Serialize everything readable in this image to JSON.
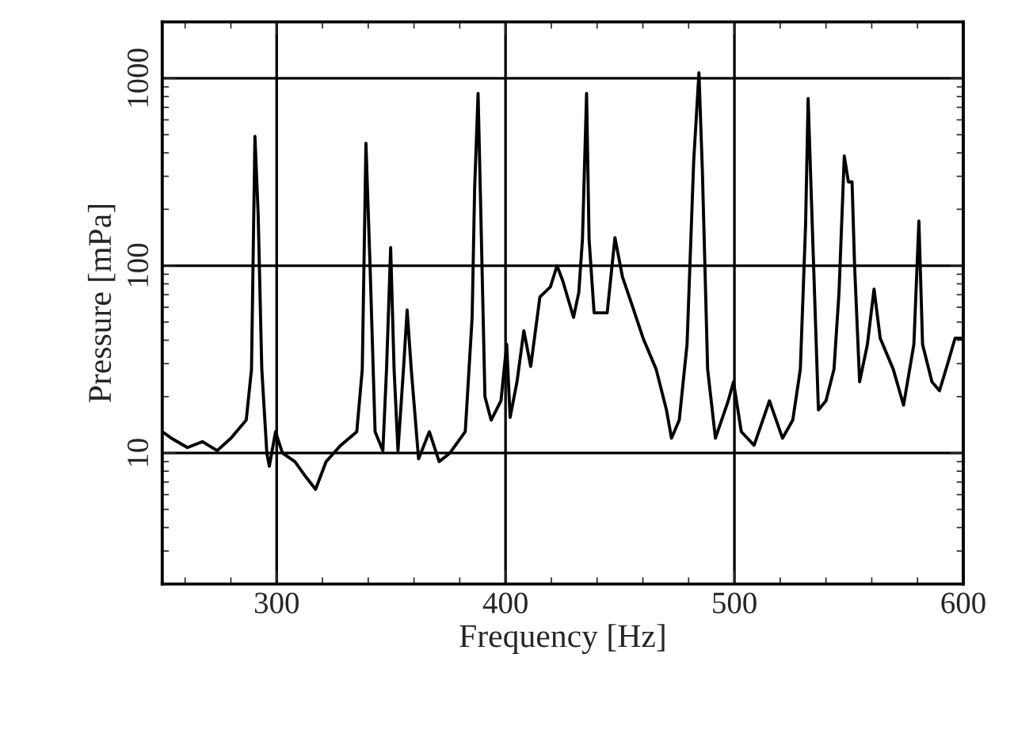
{
  "chart_data": {
    "type": "line",
    "xlabel": "Frequency [Hz]",
    "ylabel": "Pressure [mPa]",
    "x": [
      250,
      254,
      261,
      267.6,
      274,
      280,
      286.7,
      289,
      290.5,
      291.9,
      293.5,
      295.7,
      296.8,
      299.5,
      302.5,
      308,
      312.6,
      317,
      321.6,
      328,
      335,
      337.4,
      339,
      340.8,
      343,
      346.4,
      348,
      349.8,
      351.3,
      353,
      355.4,
      357,
      358.8,
      362,
      366.7,
      371,
      375.7,
      382.4,
      385.4,
      386.5,
      388,
      389.2,
      391,
      393.7,
      398,
      400.5,
      402,
      405,
      408,
      411,
      415,
      419.6,
      422.5,
      425,
      429.7,
      432,
      433.6,
      435.4,
      436.5,
      438.7,
      444.4,
      447.8,
      451.1,
      455.6,
      460.1,
      465.8,
      470.3,
      472.5,
      475.9,
      479.3,
      482.2,
      484.5,
      486,
      488.3,
      491.7,
      497.3,
      499.6,
      503,
      508.6,
      515.3,
      521,
      525.5,
      528.8,
      531.1,
      532.2,
      534,
      536.7,
      540,
      543.5,
      545.7,
      548,
      549.8,
      551.4,
      552.5,
      554.7,
      558.1,
      561,
      563.7,
      569.4,
      573.9,
      578.4,
      580.6,
      582.2,
      586.3,
      589.6,
      593,
      596.4,
      600
    ],
    "series": [
      {
        "color": "#000000",
        "values": [
          13,
          12,
          10.7,
          11.5,
          10.3,
          12,
          15,
          28,
          490,
          190,
          28,
          10,
          8.5,
          13,
          10,
          9,
          7.5,
          6.4,
          9,
          11,
          13,
          28,
          450,
          100,
          13,
          10.3,
          28,
          125,
          28,
          10.3,
          28,
          58,
          28,
          9.3,
          13,
          9,
          10,
          13,
          53,
          260,
          830,
          190,
          20,
          15,
          19,
          38,
          15.5,
          24,
          45,
          29,
          68,
          77,
          100,
          83,
          53,
          72,
          138,
          830,
          138,
          56,
          56,
          141,
          87,
          60,
          41,
          28,
          17,
          12,
          15,
          38,
          360,
          1070,
          320,
          28,
          12,
          19,
          24,
          13,
          11,
          19,
          12,
          15,
          28,
          166,
          780,
          166,
          17,
          19,
          28,
          72,
          385,
          280,
          280,
          100,
          24,
          38,
          75,
          41,
          28,
          18,
          38,
          173,
          38,
          24,
          21.5,
          29.5,
          41,
          41
        ]
      }
    ],
    "xlim": [
      250,
      600
    ],
    "xticks": [
      300,
      400,
      500,
      600,
      {
        "value": 260,
        "label": null
      },
      {
        "value": 280,
        "label": null
      },
      {
        "value": 320,
        "label": null
      },
      {
        "value": 340,
        "label": null
      },
      {
        "value": 360,
        "label": null
      },
      {
        "value": 380,
        "label": null
      },
      {
        "value": 420,
        "label": null
      },
      {
        "value": 440,
        "label": null
      },
      {
        "value": 460,
        "label": null
      },
      {
        "value": 480,
        "label": null
      },
      {
        "value": 520,
        "label": null
      },
      {
        "value": 540,
        "label": null
      },
      {
        "value": 560,
        "label": null
      },
      {
        "value": 580,
        "label": null
      }
    ],
    "ylim": [
      2,
      2000
    ],
    "yticks": [
      10,
      100,
      1000
    ],
    "log": "y",
    "grid": true,
    "marker": "none",
    "line_style": "solid"
  }
}
